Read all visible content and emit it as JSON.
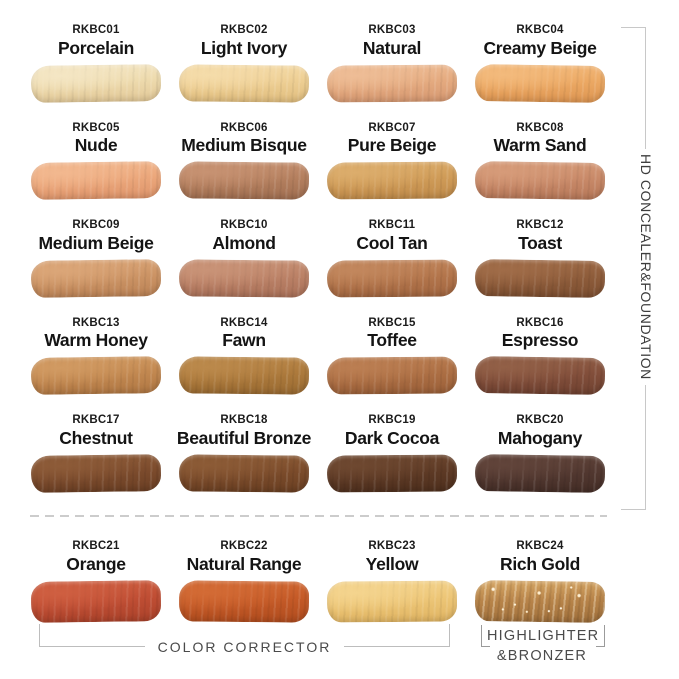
{
  "side_label": {
    "text": "HD CONCEALER&FOUNDATION"
  },
  "group_labels": {
    "color_corrector": "COLOR CORRECTOR",
    "highlighter_line1": "HIGHLIGHTER",
    "highlighter_line2": "&BRONZER"
  },
  "colors": {
    "background": "#ffffff",
    "label_text": "#1b1b1b",
    "group_text": "#4a4a4a",
    "bracket_line": "#c8c8c8",
    "dashed_divider": "#cccccc"
  },
  "swatches": [
    {
      "code": "RKBC01",
      "name": "Porcelain",
      "color": "#eedbae",
      "color_light": "#f4e6c4",
      "color_dark": "#e2c897"
    },
    {
      "code": "RKBC02",
      "name": "Light Ivory",
      "color": "#eecf94",
      "color_light": "#f5dcaa",
      "color_dark": "#e0bd7e"
    },
    {
      "code": "RKBC03",
      "name": "Natural",
      "color": "#e5ab80",
      "color_light": "#eebd96",
      "color_dark": "#d69871"
    },
    {
      "code": "RKBC04",
      "name": "Creamy Beige",
      "color": "#eca964",
      "color_light": "#f3ba7c",
      "color_dark": "#dd9551"
    },
    {
      "code": "RKBC05",
      "name": "Nude",
      "color": "#eca87c",
      "color_light": "#f2b88f",
      "color_dark": "#de946a"
    },
    {
      "code": "RKBC06",
      "name": "Medium Bisque",
      "color": "#b5805f",
      "color_light": "#c79272",
      "color_dark": "#a06e50"
    },
    {
      "code": "RKBC07",
      "name": "Pure Beige",
      "color": "#d09c58",
      "color_light": "#dcad6c",
      "color_dark": "#bf8a49"
    },
    {
      "code": "RKBC08",
      "name": "Warm Sand",
      "color": "#c98a69",
      "color_light": "#d69b79",
      "color_dark": "#b67758"
    },
    {
      "code": "RKBC09",
      "name": "Medium Beige",
      "color": "#cd9566",
      "color_light": "#dba678",
      "color_dark": "#bb8255"
    },
    {
      "code": "RKBC10",
      "name": "Almond",
      "color": "#bc8267",
      "color_light": "#c99377",
      "color_dark": "#a97058"
    },
    {
      "code": "RKBC11",
      "name": "Cool Tan",
      "color": "#b4764c",
      "color_light": "#c2875d",
      "color_dark": "#a1653f"
    },
    {
      "code": "RKBC12",
      "name": "Toast",
      "color": "#8f5d3b",
      "color_light": "#a06c48",
      "color_dark": "#7c4e30"
    },
    {
      "code": "RKBC13",
      "name": "Warm Honey",
      "color": "#c38951",
      "color_light": "#d19a62",
      "color_dark": "#b07743"
    },
    {
      "code": "RKBC14",
      "name": "Fawn",
      "color": "#ad7a3c",
      "color_light": "#bb894b",
      "color_dark": "#996a31"
    },
    {
      "code": "RKBC15",
      "name": "Toffee",
      "color": "#ad6f44",
      "color_light": "#bb7e52",
      "color_dark": "#9a5f38"
    },
    {
      "code": "RKBC16",
      "name": "Espresso",
      "color": "#834f3b",
      "color_light": "#926047",
      "color_dark": "#6f4130"
    },
    {
      "code": "RKBC17",
      "name": "Chestnut",
      "color": "#7d4c2d",
      "color_light": "#8d5b38",
      "color_dark": "#6b3f24"
    },
    {
      "code": "RKBC18",
      "name": "Beautiful Bronze",
      "color": "#7c4c2b",
      "color_light": "#8c5b36",
      "color_dark": "#6a3f22"
    },
    {
      "code": "RKBC19",
      "name": "Dark Cocoa",
      "color": "#5e3a25",
      "color_light": "#6e4830",
      "color_dark": "#4e2f1d"
    },
    {
      "code": "RKBC20",
      "name": "Mahogany",
      "color": "#523830",
      "color_light": "#61443a",
      "color_dark": "#442d26"
    },
    {
      "code": "RKBC21",
      "name": "Orange",
      "color": "#c04e34",
      "color_light": "#cf5f41",
      "color_dark": "#ab422a"
    },
    {
      "code": "RKBC22",
      "name": "Natural Range",
      "color": "#c55a27",
      "color_light": "#d36b35",
      "color_dark": "#b04c1e"
    },
    {
      "code": "RKBC23",
      "name": "Yellow",
      "color": "#edc677",
      "color_light": "#f4d48e",
      "color_dark": "#e0b462"
    },
    {
      "code": "RKBC24",
      "name": "Rich Gold",
      "color": "#b9854a",
      "color_light": "#d8a967",
      "color_dark": "#9e6e3a",
      "sparkle": true
    }
  ]
}
